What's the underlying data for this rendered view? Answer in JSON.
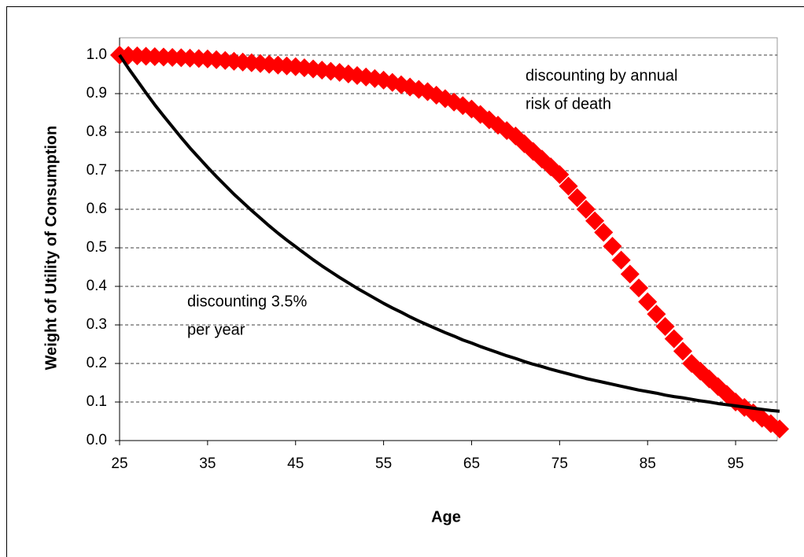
{
  "chart_data": {
    "type": "line",
    "x_label": "Age",
    "y_label": "Weight of Utility of Consumption",
    "x": [
      25,
      26,
      27,
      28,
      29,
      30,
      31,
      32,
      33,
      34,
      35,
      36,
      37,
      38,
      39,
      40,
      41,
      42,
      43,
      44,
      45,
      46,
      47,
      48,
      49,
      50,
      51,
      52,
      53,
      54,
      55,
      56,
      57,
      58,
      59,
      60,
      61,
      62,
      63,
      64,
      65,
      66,
      67,
      68,
      69,
      70,
      71,
      72,
      73,
      74,
      75,
      76,
      77,
      78,
      79,
      80,
      81,
      82,
      83,
      84,
      85,
      86,
      87,
      88,
      89,
      90,
      91,
      92,
      93,
      94,
      95,
      96,
      97,
      98,
      99,
      100
    ],
    "series": [
      {
        "color": "#000000",
        "marker": "none",
        "values": [
          1.0,
          0.966,
          0.934,
          0.902,
          0.871,
          0.842,
          0.814,
          0.786,
          0.759,
          0.734,
          0.709,
          0.685,
          0.662,
          0.639,
          0.618,
          0.597,
          0.577,
          0.557,
          0.538,
          0.52,
          0.503,
          0.486,
          0.469,
          0.453,
          0.438,
          0.423,
          0.409,
          0.395,
          0.382,
          0.369,
          0.356,
          0.344,
          0.333,
          0.321,
          0.31,
          0.3,
          0.29,
          0.28,
          0.271,
          0.261,
          0.253,
          0.244,
          0.236,
          0.228,
          0.22,
          0.213,
          0.205,
          0.198,
          0.192,
          0.185,
          0.179,
          0.173,
          0.167,
          0.161,
          0.156,
          0.151,
          0.146,
          0.141,
          0.136,
          0.131,
          0.127,
          0.123,
          0.118,
          0.114,
          0.111,
          0.107,
          0.103,
          0.1,
          0.096,
          0.093,
          0.09,
          0.087,
          0.084,
          0.081,
          0.078,
          0.076
        ]
      },
      {
        "color": "#ff0000",
        "marker": "diamond",
        "values": [
          1.0,
          0.999,
          0.998,
          0.997,
          0.996,
          0.995,
          0.994,
          0.993,
          0.992,
          0.991,
          0.99,
          0.988,
          0.986,
          0.984,
          0.982,
          0.98,
          0.978,
          0.976,
          0.974,
          0.972,
          0.97,
          0.967,
          0.964,
          0.961,
          0.958,
          0.955,
          0.951,
          0.947,
          0.943,
          0.939,
          0.935,
          0.929,
          0.923,
          0.917,
          0.911,
          0.905,
          0.896,
          0.887,
          0.878,
          0.869,
          0.86,
          0.846,
          0.832,
          0.818,
          0.804,
          0.79,
          0.77,
          0.75,
          0.73,
          0.71,
          0.69,
          0.66,
          0.63,
          0.6,
          0.57,
          0.54,
          0.504,
          0.468,
          0.432,
          0.396,
          0.36,
          0.328,
          0.296,
          0.264,
          0.232,
          0.2,
          0.18,
          0.16,
          0.14,
          0.12,
          0.1,
          0.086,
          0.072,
          0.058,
          0.044,
          0.03
        ]
      }
    ],
    "xlim": [
      25,
      100
    ],
    "xticks": [
      25,
      35,
      45,
      55,
      65,
      75,
      85,
      95
    ],
    "ylim": [
      0,
      1
    ],
    "yticks": [
      {
        "value": 0,
        "label": "0.0"
      },
      0.1,
      0.2,
      0.3,
      0.4,
      0.5,
      0.6,
      0.7,
      0.8,
      0.9,
      {
        "value": 1,
        "label": "1.0"
      }
    ],
    "grid": true,
    "annotations": [
      {
        "lines": [
          "discounting by annual",
          "risk of death"
        ]
      },
      {
        "lines": [
          "discounting 3.5%",
          "per year"
        ]
      }
    ]
  }
}
